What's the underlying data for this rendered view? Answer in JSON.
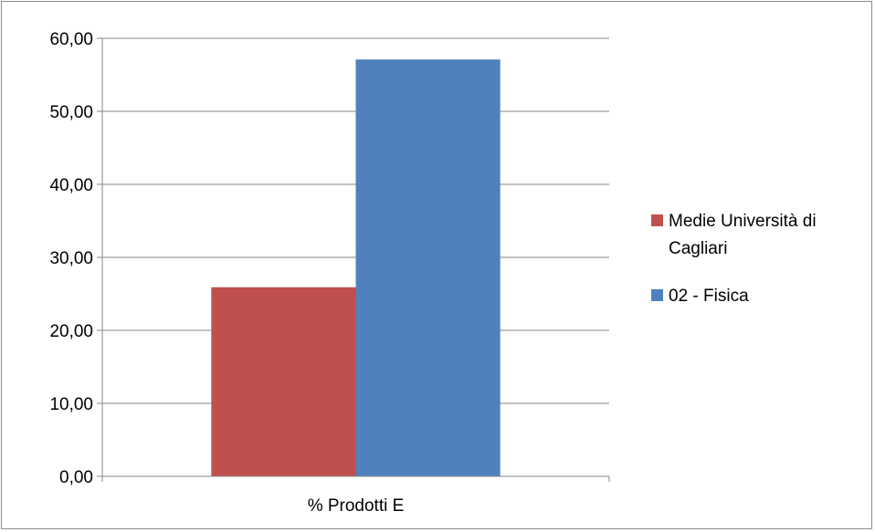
{
  "chart_data": {
    "type": "bar",
    "categories": [
      "% Prodotti E"
    ],
    "series": [
      {
        "name": "Medie Università di Cagliari",
        "legend_lines": [
          "Medie Università di",
          "Cagliari"
        ],
        "values": [
          25.9
        ],
        "color": "#c0504d"
      },
      {
        "name": "02 - Fisica",
        "legend_lines": [
          "02 - Fisica"
        ],
        "values": [
          57.1
        ],
        "color": "#4f81bd"
      }
    ],
    "ylim": [
      0,
      60
    ],
    "yticks": [
      0,
      10,
      20,
      30,
      40,
      50,
      60
    ],
    "ytick_labels": [
      "0,00",
      "10,00",
      "20,00",
      "30,00",
      "40,00",
      "50,00",
      "60,00"
    ],
    "grid": true,
    "legend_position": "right",
    "title": "",
    "xlabel": "",
    "ylabel": ""
  }
}
